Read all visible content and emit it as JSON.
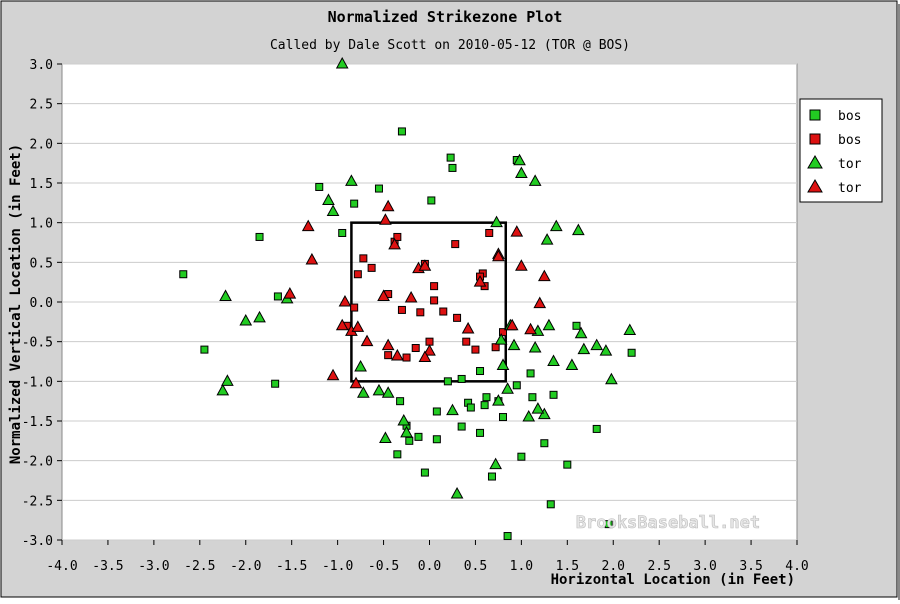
{
  "chart_data": {
    "type": "scatter",
    "title": "Normalized Strikezone Plot",
    "subtitle": "Called by Dale Scott on 2010-05-12 (TOR @ BOS)",
    "xlabel": "Horizontal Location (in Feet)",
    "ylabel": "Normalized Vertical Location (in Feet)",
    "xlim": [
      -4.0,
      4.0
    ],
    "ylim": [
      -3.0,
      3.0
    ],
    "x_ticks": [
      "-4.0",
      "-3.5",
      "-3.0",
      "-2.5",
      "-2.0",
      "-1.5",
      "-1.0",
      "-0.5",
      "0.0",
      "0.5",
      "1.0",
      "1.5",
      "2.0",
      "2.5",
      "3.0",
      "3.5",
      "4.0"
    ],
    "y_ticks": [
      "3.0",
      "2.5",
      "2.0",
      "1.5",
      "1.0",
      "0.5",
      "0.0",
      "-0.5",
      "-1.0",
      "-1.5",
      "-2.0",
      "-2.5",
      "-3.0"
    ],
    "grid": "horizontal",
    "legend_position": "top-right",
    "strike_zone": {
      "x": [
        -0.85,
        0.83
      ],
      "y": [
        -1.0,
        1.0
      ]
    },
    "watermark": "BrooksBaseball.net",
    "series": [
      {
        "name": "bos",
        "marker": "square",
        "color": "#22cc22",
        "points": [
          [
            -2.68,
            0.35
          ],
          [
            -2.45,
            -0.6
          ],
          [
            -1.85,
            0.82
          ],
          [
            -1.68,
            -1.03
          ],
          [
            -1.65,
            0.07
          ],
          [
            -1.2,
            1.45
          ],
          [
            -0.95,
            0.87
          ],
          [
            -0.82,
            1.24
          ],
          [
            -0.55,
            1.43
          ],
          [
            -0.3,
            2.15
          ],
          [
            0.02,
            1.28
          ],
          [
            0.23,
            1.82
          ],
          [
            0.25,
            1.69
          ],
          [
            0.95,
            1.79
          ],
          [
            -0.32,
            -1.25
          ],
          [
            -0.25,
            -1.56
          ],
          [
            -0.22,
            -1.75
          ],
          [
            -0.12,
            -1.7
          ],
          [
            0.08,
            -1.38
          ],
          [
            0.08,
            -1.73
          ],
          [
            0.35,
            -1.57
          ],
          [
            0.42,
            -1.27
          ],
          [
            0.45,
            -1.33
          ],
          [
            0.55,
            -1.65
          ],
          [
            0.6,
            -1.3
          ],
          [
            0.68,
            -2.2
          ],
          [
            0.8,
            -1.45
          ],
          [
            0.85,
            -2.95
          ],
          [
            1.0,
            -1.95
          ],
          [
            1.1,
            -0.9
          ],
          [
            1.12,
            -1.2
          ],
          [
            1.25,
            -1.78
          ],
          [
            1.35,
            -1.17
          ],
          [
            1.5,
            -2.05
          ],
          [
            1.6,
            -0.3
          ],
          [
            1.82,
            -1.6
          ],
          [
            1.95,
            -2.8
          ],
          [
            2.2,
            -0.64
          ],
          [
            1.32,
            -2.55
          ],
          [
            -0.05,
            -2.15
          ],
          [
            -0.35,
            -1.92
          ],
          [
            0.95,
            -1.05
          ],
          [
            0.75,
            -1.25
          ],
          [
            0.62,
            -1.2
          ],
          [
            0.55,
            -0.87
          ],
          [
            0.35,
            -0.97
          ],
          [
            0.2,
            -1.0
          ]
        ]
      },
      {
        "name": "bos",
        "marker": "square",
        "color": "#dd1111",
        "points": [
          [
            -0.72,
            0.55
          ],
          [
            -0.63,
            0.43
          ],
          [
            -0.38,
            0.76
          ],
          [
            -0.35,
            0.82
          ],
          [
            0.28,
            0.73
          ],
          [
            0.65,
            0.87
          ],
          [
            0.58,
            0.36
          ],
          [
            -0.45,
            0.1
          ],
          [
            -0.3,
            -0.1
          ],
          [
            -0.1,
            -0.13
          ],
          [
            0.05,
            0.02
          ],
          [
            0.05,
            0.2
          ],
          [
            0.15,
            -0.12
          ],
          [
            0.3,
            -0.2
          ],
          [
            0.4,
            -0.5
          ],
          [
            0.5,
            -0.6
          ],
          [
            0.55,
            0.32
          ],
          [
            0.6,
            0.2
          ],
          [
            0.72,
            -0.57
          ],
          [
            -0.25,
            -0.7
          ],
          [
            -0.15,
            -0.58
          ],
          [
            0.0,
            -0.5
          ],
          [
            -0.9,
            -0.3
          ],
          [
            -0.82,
            -0.07
          ],
          [
            -0.45,
            -0.67
          ],
          [
            0.8,
            -0.38
          ],
          [
            -0.05,
            0.48
          ],
          [
            -0.78,
            0.35
          ]
        ]
      },
      {
        "name": "tor",
        "marker": "triangle",
        "color": "#22cc22",
        "points": [
          [
            -0.95,
            3.0
          ],
          [
            -0.85,
            1.52
          ],
          [
            -1.1,
            1.28
          ],
          [
            -1.05,
            1.14
          ],
          [
            -2.25,
            -1.12
          ],
          [
            -2.2,
            -1.0
          ],
          [
            -2.22,
            0.07
          ],
          [
            -2.0,
            -0.24
          ],
          [
            -1.85,
            -0.2
          ],
          [
            -1.55,
            0.04
          ],
          [
            0.98,
            1.78
          ],
          [
            1.0,
            1.62
          ],
          [
            1.15,
            1.52
          ],
          [
            1.28,
            0.78
          ],
          [
            1.38,
            0.95
          ],
          [
            1.62,
            0.9
          ],
          [
            0.73,
            1.0
          ],
          [
            1.3,
            -0.3
          ],
          [
            1.35,
            -0.75
          ],
          [
            1.25,
            -1.42
          ],
          [
            1.18,
            -1.35
          ],
          [
            1.08,
            -1.45
          ],
          [
            1.15,
            -0.58
          ],
          [
            1.55,
            -0.8
          ],
          [
            1.68,
            -0.6
          ],
          [
            1.82,
            -0.55
          ],
          [
            1.92,
            -0.62
          ],
          [
            1.98,
            -0.98
          ],
          [
            2.18,
            -0.36
          ],
          [
            1.65,
            -0.4
          ],
          [
            1.18,
            -0.37
          ],
          [
            0.92,
            -0.55
          ],
          [
            0.88,
            -0.3
          ],
          [
            0.78,
            -0.48
          ],
          [
            0.8,
            -0.8
          ],
          [
            0.85,
            -1.1
          ],
          [
            0.75,
            -1.25
          ],
          [
            0.72,
            -2.05
          ],
          [
            0.3,
            -2.42
          ],
          [
            -0.25,
            -1.65
          ],
          [
            -0.55,
            -1.12
          ],
          [
            -0.48,
            -1.72
          ],
          [
            -0.45,
            -1.15
          ],
          [
            -0.28,
            -1.5
          ],
          [
            -0.72,
            -1.15
          ],
          [
            -0.75,
            -0.82
          ],
          [
            0.25,
            -1.37
          ]
        ]
      },
      {
        "name": "tor",
        "marker": "triangle",
        "color": "#dd1111",
        "points": [
          [
            -1.32,
            0.95
          ],
          [
            -1.28,
            0.53
          ],
          [
            -1.52,
            0.1
          ],
          [
            -0.48,
            1.03
          ],
          [
            -0.45,
            1.2
          ],
          [
            -0.38,
            0.72
          ],
          [
            -0.12,
            0.42
          ],
          [
            -0.05,
            0.45
          ],
          [
            0.55,
            0.25
          ],
          [
            0.75,
            0.6
          ],
          [
            0.95,
            0.88
          ],
          [
            1.0,
            0.45
          ],
          [
            1.25,
            0.32
          ],
          [
            1.2,
            -0.02
          ],
          [
            1.1,
            -0.35
          ],
          [
            0.9,
            -0.3
          ],
          [
            -0.92,
            0.0
          ],
          [
            -0.95,
            -0.3
          ],
          [
            -0.85,
            -0.37
          ],
          [
            -0.78,
            -0.32
          ],
          [
            -0.68,
            -0.5
          ],
          [
            -0.45,
            -0.55
          ],
          [
            -0.35,
            -0.68
          ],
          [
            0.0,
            -0.62
          ],
          [
            -0.05,
            -0.7
          ],
          [
            0.42,
            -0.34
          ],
          [
            0.75,
            0.57
          ],
          [
            -0.5,
            0.07
          ],
          [
            -1.05,
            -0.93
          ],
          [
            -0.8,
            -1.03
          ],
          [
            -0.2,
            0.05
          ]
        ]
      }
    ]
  }
}
